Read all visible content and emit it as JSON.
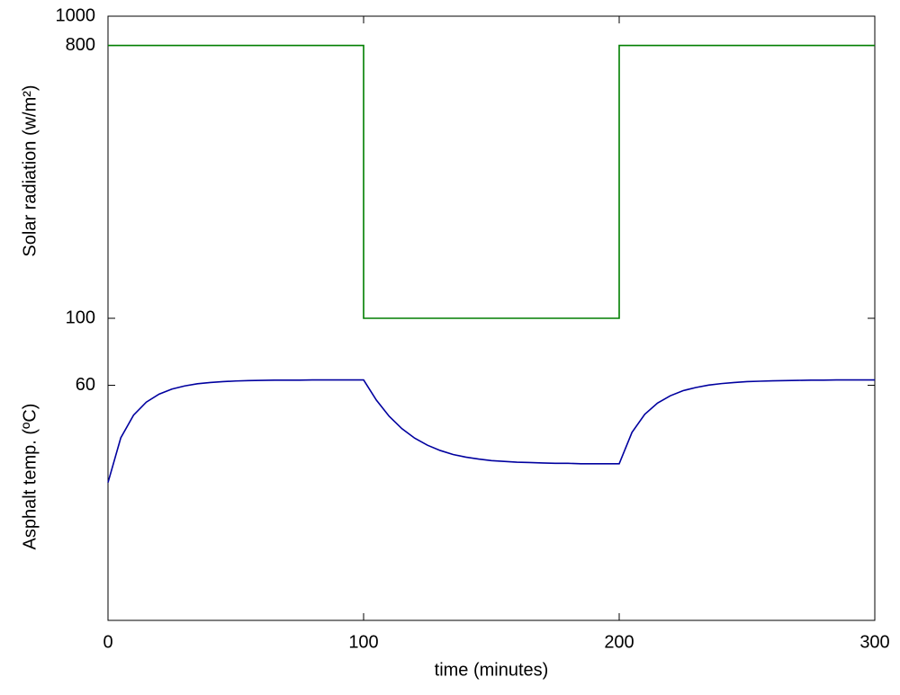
{
  "chart_data": {
    "type": "line",
    "xlabel": "time (minutes)",
    "ylabels": [
      "Solar radiation (w/m²)",
      "Asphalt temp. (ºC)"
    ],
    "xlim": [
      0,
      300
    ],
    "xticks": [
      0,
      100,
      200,
      300
    ],
    "ylim": [
      10,
      1000
    ],
    "yticks": [
      60,
      100,
      800,
      1000
    ],
    "y_log_scale": true,
    "grid": false,
    "series": [
      {
        "color": "#007f00",
        "x": [
          0,
          100,
          100,
          200,
          200,
          300
        ],
        "values": [
          800,
          800,
          100,
          100,
          800,
          800
        ]
      },
      {
        "color": "#00009f",
        "x": [
          0,
          5,
          10,
          15,
          20,
          25,
          30,
          35,
          40,
          45,
          50,
          55,
          60,
          65,
          70,
          75,
          80,
          85,
          90,
          95,
          100,
          105,
          110,
          115,
          120,
          125,
          130,
          135,
          140,
          145,
          150,
          155,
          160,
          165,
          170,
          175,
          180,
          185,
          190,
          195,
          200,
          205,
          210,
          215,
          220,
          225,
          230,
          235,
          240,
          245,
          250,
          255,
          260,
          265,
          270,
          275,
          280,
          285,
          290,
          295,
          300
        ],
        "values": [
          28.6,
          40.2,
          47.8,
          52.8,
          56.1,
          58.3,
          59.7,
          60.7,
          61.3,
          61.7,
          62.0,
          62.2,
          62.3,
          62.4,
          62.4,
          62.4,
          62.5,
          62.5,
          62.5,
          62.5,
          62.5,
          53.6,
          47.4,
          43.1,
          40.1,
          38.0,
          36.5,
          35.4,
          34.7,
          34.2,
          33.8,
          33.6,
          33.4,
          33.3,
          33.2,
          33.1,
          33.1,
          33.0,
          33.0,
          33.0,
          33.0,
          41.9,
          48.1,
          52.4,
          55.4,
          57.6,
          59.0,
          60.1,
          60.8,
          61.3,
          61.7,
          61.9,
          62.1,
          62.2,
          62.3,
          62.4,
          62.4,
          62.5,
          62.5,
          62.5,
          62.5
        ]
      }
    ]
  }
}
